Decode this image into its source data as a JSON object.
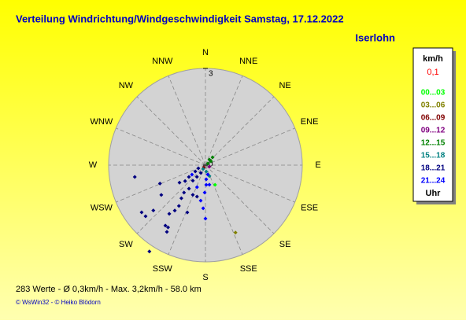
{
  "chart_data": {
    "type": "polar-scatter",
    "title": "Verteilung Windrichtung/Windgeschwindigkeit  Samstag, 17.12.2022",
    "subtitle": "Iserlohn",
    "direction_labels": [
      "N",
      "NNE",
      "NE",
      "ENE",
      "E",
      "ESE",
      "SE",
      "SSE",
      "S",
      "SSW",
      "SW",
      "WSW",
      "W",
      "WNW",
      "NW",
      "NNW"
    ],
    "rlim": [
      0,
      3
    ],
    "rticks": [
      0,
      3
    ],
    "legend_title": "km/h",
    "legend_calm": "0,1",
    "legend_footer": "Uhr",
    "series": [
      {
        "name": "00...03",
        "color": "#00ff00",
        "directions": [
          154
        ],
        "values": [
          0.68
        ]
      },
      {
        "name": "03...06",
        "color": "#808000",
        "directions": [
          156
        ],
        "values": [
          2.29
        ]
      },
      {
        "name": "06...09",
        "color": "#800000",
        "directions": [
          214
        ],
        "values": [
          0.09
        ]
      },
      {
        "name": "09...12",
        "color": "#800080",
        "directions": [
          112
        ],
        "values": [
          0.13
        ]
      },
      {
        "name": "12...15",
        "color": "#008000",
        "directions": [
          54.5,
          42,
          56,
          35.5
        ],
        "values": [
          0.21,
          0.33,
          0.09,
          0.21
        ]
      },
      {
        "name": "15...18",
        "color": "#008080",
        "directions": [
          160,
          173,
          211
        ],
        "values": [
          0.36,
          0.2,
          0.14
        ]
      },
      {
        "name": "18...21",
        "color": "#000080",
        "directions": [
          260.5,
          213,
          229.5,
          248,
          236,
          233.5,
          229,
          210,
          211,
          213.5,
          216.6,
          214,
          213,
          201,
          216,
          218,
          215,
          219,
          216,
          238,
          246,
          203,
          195,
          234.5,
          232,
          236,
          211
        ],
        "values": [
          2.22,
          3.19,
          2.44,
          1.52,
          1.65,
          2.46,
          2.14,
          2.39,
          2.25,
          2.25,
          1.88,
          1.7,
          1.51,
          1.57,
          1.27,
          1.08,
          0.89,
          0.62,
          0.45,
          0.37,
          0.24,
          1.0,
          1.01,
          0.63,
          0.8,
          0.97,
          0.28
        ]
      },
      {
        "name": "21...24",
        "color": "#0000ff",
        "directions": [
          180,
          183,
          187.6,
          181.6,
          177.7,
          201,
          235,
          168.7,
          176.8,
          166
        ],
        "values": [
          1.66,
          1.34,
          1.11,
          0.85,
          0.61,
          0.73,
          0.51,
          0.62,
          0.44,
          0.3
        ]
      }
    ],
    "footer": "283 Werte   -   Ø 0,3km/h   -   Max. 3,2km/h   -   58.0 km",
    "copyright": "© WsWin32  -  © Heiko Blödorn"
  }
}
